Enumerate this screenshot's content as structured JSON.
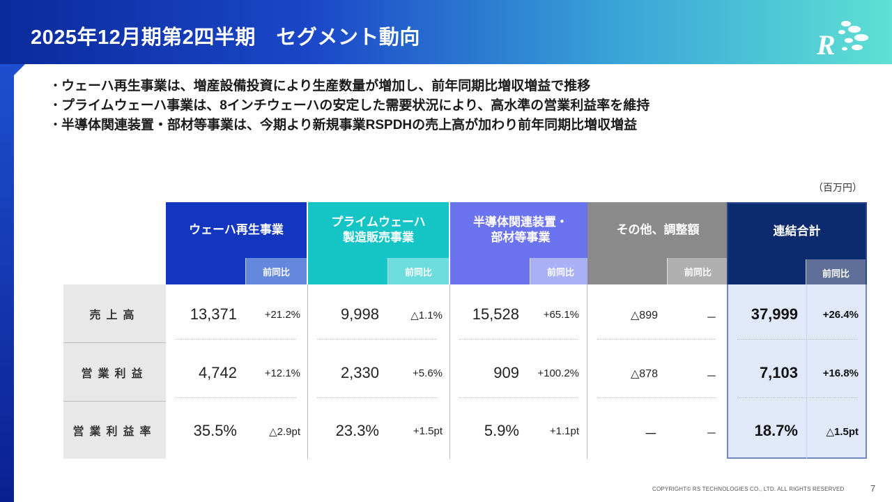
{
  "slide": {
    "title": "2025年12月期第2四半期　セグメント動向",
    "bullets": [
      "ウェーハ再生事業は、増産設備投資により生産数量が増加し、前年同期比増収増益で推移",
      "プライムウェーハ事業は、8インチウェーハの安定した需要状況により、高水準の営業利益率を維持",
      "半導体関連装置・部材等事業は、今期より新規事業RSPDHの売上高が加わり前年同期比増収増益"
    ],
    "bullet_marker": "・",
    "unit": "（百万円）",
    "yoy_label": "前同比",
    "colors": {
      "banner_start": "#0a2a9c",
      "banner_end": "#5fe0d4",
      "wafer_reclaim": "#1336c0",
      "prime_wafer": "#15c4c4",
      "semiconductor": "#6c73ee",
      "other": "#8a8a8a",
      "consolidated": "#0c2a6e"
    },
    "logo_icon": "rs-technologies-logo",
    "footer": "COPYRIGHT© RS TECHNOLOGIES CO., LTD. ALL RIGHTS RESERVED",
    "page_number": "7"
  },
  "table": {
    "row_labels": [
      "売上高",
      "営業利益",
      "営業利益率"
    ],
    "segments": [
      {
        "name_line1": "ウェーハ再生事業",
        "name_line2": "",
        "values": [
          "13,371",
          "4,742",
          "35.5%"
        ],
        "yoy": [
          "+21.2%",
          "+12.1%",
          "△2.9pt"
        ]
      },
      {
        "name_line1": "プライムウェーハ",
        "name_line2": "製造販売事業",
        "values": [
          "9,998",
          "2,330",
          "23.3%"
        ],
        "yoy": [
          "△1.1%",
          "+5.6%",
          "+1.5pt"
        ]
      },
      {
        "name_line1": "半導体関連装置・",
        "name_line2": "部材等事業",
        "values": [
          "15,528",
          "909",
          "5.9%"
        ],
        "yoy": [
          "+65.1%",
          "+100.2%",
          "+1.1pt"
        ]
      },
      {
        "name_line1": "その他、調整額",
        "name_line2": "",
        "values": [
          "△899",
          "△878",
          "－"
        ],
        "yoy": [
          "－",
          "－",
          "－"
        ]
      }
    ],
    "consolidated": {
      "name": "連結合計",
      "values": [
        "37,999",
        "7,103",
        "18.7%"
      ],
      "yoy": [
        "+26.4%",
        "+16.8%",
        "△1.5pt"
      ]
    }
  }
}
